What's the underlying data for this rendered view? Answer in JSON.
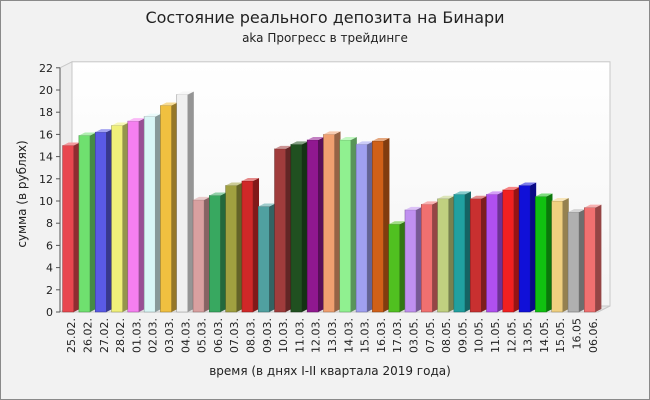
{
  "chart_data": {
    "type": "bar",
    "title": "Состояние реального депозита на Бинари",
    "subtitle": "aka Прогресс в трейдинге",
    "xlabel": "время (в днях I-II квартала 2019 года)",
    "ylabel": "сумма (в рублях)",
    "ylim": [
      0,
      22
    ],
    "yticks": [
      0,
      2,
      4,
      6,
      8,
      10,
      12,
      14,
      16,
      18,
      20,
      22
    ],
    "grid": false,
    "legend": "none",
    "categories": [
      "25.02.",
      "26.02.",
      "27.02.",
      "28.02.",
      "01.03.",
      "02.03.",
      "03.03.",
      "04.03.",
      "05.03.",
      "06.03.",
      "07.03.",
      "08.03.",
      "09.03.",
      "10.03.",
      "11.03.",
      "12.03.",
      "13.03.",
      "14.03.",
      "15.03.",
      "16.03.",
      "17.03.",
      "03.05.",
      "07.05.",
      "08.05.",
      "09.05.",
      "10.05.",
      "11.05.",
      "12.05.",
      "13.05.",
      "14.05.",
      "15.05.",
      "16.05",
      "06.06."
    ],
    "values": [
      15.0,
      15.9,
      16.2,
      16.8,
      17.2,
      17.6,
      18.6,
      19.6,
      10.1,
      10.5,
      11.4,
      11.8,
      9.5,
      14.7,
      15.1,
      15.5,
      16.0,
      15.5,
      15.1,
      15.4,
      7.9,
      9.2,
      9.7,
      10.2,
      10.6,
      10.2,
      10.6,
      11.0,
      11.4,
      10.4,
      10.0,
      9.0,
      9.4
    ],
    "colors": [
      "#e8474f",
      "#6fe06f",
      "#5a5ae6",
      "#f0f07a",
      "#f57ff0",
      "#d9f6f6",
      "#f0c040",
      "#f0f0f0",
      "#d9a0a0",
      "#38a860",
      "#a0a040",
      "#d02828",
      "#50a0a0",
      "#a03c3c",
      "#205020",
      "#901890",
      "#f0a070",
      "#90f090",
      "#a0a0f0",
      "#d06018",
      "#50c020",
      "#c090f0",
      "#f07070",
      "#c0d080",
      "#20a0a0",
      "#c83030",
      "#b050f0",
      "#f02020",
      "#1010d8",
      "#10c010",
      "#f0d080",
      "#b0b0b0",
      "#f07070"
    ]
  }
}
